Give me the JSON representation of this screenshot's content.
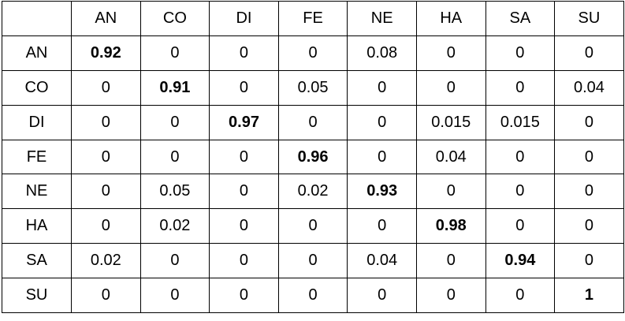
{
  "matrix": {
    "corner": "",
    "columns": [
      "AN",
      "CO",
      "DI",
      "FE",
      "NE",
      "HA",
      "SA",
      "SU"
    ],
    "rows": [
      {
        "label": "AN",
        "values": [
          "0.92",
          "0",
          "0",
          "0",
          "0.08",
          "0",
          "0",
          "0"
        ]
      },
      {
        "label": "CO",
        "values": [
          "0",
          "0.91",
          "0",
          "0.05",
          "0",
          "0",
          "0",
          "0.04"
        ]
      },
      {
        "label": "DI",
        "values": [
          "0",
          "0",
          "0.97",
          "0",
          "0",
          "0.015",
          "0.015",
          "0"
        ]
      },
      {
        "label": "FE",
        "values": [
          "0",
          "0",
          "0",
          "0.96",
          "0",
          "0.04",
          "0",
          "0"
        ]
      },
      {
        "label": "NE",
        "values": [
          "0",
          "0.05",
          "0",
          "0.02",
          "0.93",
          "0",
          "0",
          "0"
        ]
      },
      {
        "label": "HA",
        "values": [
          "0",
          "0.02",
          "0",
          "0",
          "0",
          "0.98",
          "0",
          "0"
        ]
      },
      {
        "label": "SA",
        "values": [
          "0.02",
          "0",
          "0",
          "0",
          "0.04",
          "0",
          "0.94",
          "0"
        ]
      },
      {
        "label": "SU",
        "values": [
          "0",
          "0",
          "0",
          "0",
          "0",
          "0",
          "0",
          "1"
        ]
      }
    ]
  }
}
